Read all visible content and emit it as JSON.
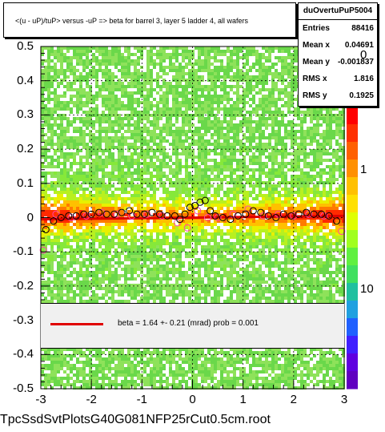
{
  "plot_title": "<(u - uP)/tuP> versus  -uP => beta for barrel 3, layer 5 ladder 4, all wafers",
  "stats": {
    "name": "duOvertuPuP5004",
    "rows": [
      {
        "label": "Entries",
        "value": "88416"
      },
      {
        "label": "Mean x",
        "value": "0.04691"
      },
      {
        "label": "Mean y",
        "value": "-0.001837"
      },
      {
        "label": "RMS x",
        "value": "1.816"
      },
      {
        "label": "RMS y",
        "value": "0.1925"
      }
    ]
  },
  "legend": {
    "text": "beta =     1.64 +-  0.21 (mrad) prob = 0.001",
    "line_color": "#e00000"
  },
  "footer_text": "TpcSsdSvtPlotsG40G081NFP25rCut0.5cm.root",
  "colors": {
    "fit_line": "#e00000",
    "marker_black": "#000000",
    "marker_pink": "#ff44aa",
    "grid": "#000000"
  },
  "chart_data": {
    "type": "heatmap",
    "xlim": [
      -3,
      3
    ],
    "ylim": [
      -0.5,
      0.5
    ],
    "x_ticks": [
      "-3",
      "-2",
      "-1",
      "0",
      "1",
      "2",
      "3"
    ],
    "y_ticks": [
      "0.5",
      "0.4",
      "0.3",
      "0.2",
      "0.1",
      "0",
      "-0.1",
      "-0.2",
      "-0.3",
      "-0.4",
      "-0.5"
    ],
    "z_scale": "log",
    "z_ticks": [
      "10",
      "1",
      "0"
    ],
    "grid": true,
    "fit": {
      "slope": 0.00164,
      "intercept": 0.0
    },
    "profile_black": {
      "x": [
        -2.9,
        -2.75,
        -2.6,
        -2.45,
        -2.3,
        -2.15,
        -2.0,
        -1.85,
        -1.7,
        -1.55,
        -1.4,
        -1.25,
        -1.1,
        -0.95,
        -0.8,
        -0.65,
        -0.5,
        -0.35,
        -0.25,
        -0.15,
        -0.05,
        0.05,
        0.15,
        0.25,
        0.35,
        0.45,
        0.6,
        0.75,
        0.9,
        1.05,
        1.2,
        1.35,
        1.5,
        1.65,
        1.8,
        1.95,
        2.1,
        2.25,
        2.4,
        2.55,
        2.7,
        2.85
      ],
      "y": [
        -0.035,
        -0.01,
        0.0,
        0.005,
        0.005,
        0.01,
        0.01,
        0.015,
        0.01,
        0.01,
        0.015,
        0.02,
        0.01,
        0.01,
        0.015,
        0.01,
        0.005,
        0.005,
        -0.005,
        0.01,
        0.03,
        0.035,
        0.045,
        0.05,
        0.02,
        0.005,
        0.0,
        -0.005,
        0.005,
        0.01,
        0.02,
        0.015,
        0.005,
        0.0,
        0.01,
        0.005,
        0.01,
        0.015,
        0.01,
        0.01,
        0.005,
        -0.01
      ]
    },
    "profile_pink": {
      "x": [
        -2.95,
        -2.7,
        -2.4,
        -2.1,
        -1.8,
        -1.5,
        -1.2,
        -0.9,
        -0.6,
        -0.3,
        -0.1,
        0.1,
        0.3,
        0.5,
        0.8,
        1.1,
        1.4,
        1.7,
        2.0,
        2.3,
        2.6,
        2.95
      ],
      "y": [
        -0.095,
        0.01,
        0.0,
        0.005,
        0.015,
        0.01,
        0.005,
        0.01,
        0.005,
        -0.015,
        -0.03,
        0.02,
        0.0,
        0.0,
        0.01,
        0.025,
        0.005,
        0.01,
        0.005,
        0.01,
        0.005,
        -0.04
      ]
    }
  }
}
